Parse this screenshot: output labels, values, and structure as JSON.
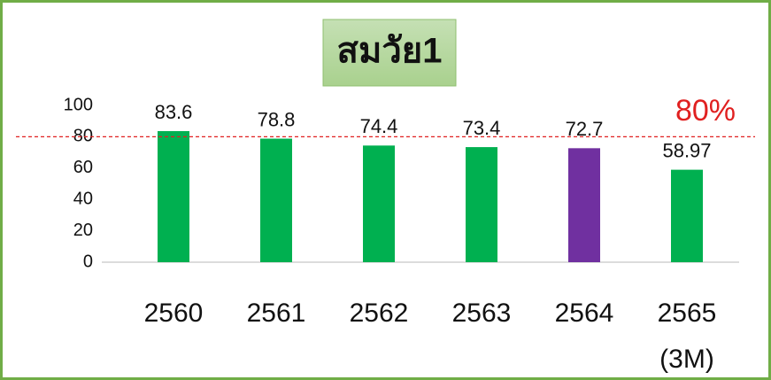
{
  "chart_data": {
    "type": "bar",
    "title": "สมวัย1",
    "categories": [
      "2560",
      "2561",
      "2562",
      "2563",
      "2564",
      "2565 (3M)"
    ],
    "values": [
      83.6,
      78.8,
      74.4,
      73.4,
      72.7,
      58.97
    ],
    "colors": [
      "#00b050",
      "#00b050",
      "#00b050",
      "#00b050",
      "#7030a0",
      "#00b050"
    ],
    "ylim": [
      0,
      100
    ],
    "yticks": [
      0,
      20,
      40,
      60,
      80,
      100
    ],
    "grid": false,
    "reference_line": {
      "value": 80,
      "label": "80%",
      "color": "#e02020"
    }
  }
}
